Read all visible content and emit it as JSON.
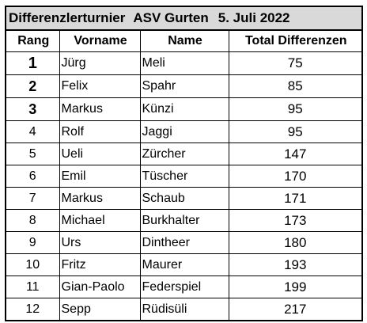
{
  "title": {
    "event": "Differenzlerturnier",
    "club": "ASV Gurten",
    "date": "5. Juli 2022"
  },
  "columns": {
    "rank": "Rang",
    "first_name": "Vorname",
    "last_name": "Name",
    "total": "Total Differenzen"
  },
  "rows": [
    {
      "rank": "1",
      "first_name": "Jürg",
      "last_name": "Meli",
      "total": "75"
    },
    {
      "rank": "2",
      "first_name": "Felix",
      "last_name": "Spahr",
      "total": "85"
    },
    {
      "rank": "3",
      "first_name": "Markus",
      "last_name": "Künzi",
      "total": "95"
    },
    {
      "rank": "4",
      "first_name": "Rolf",
      "last_name": "Jaggi",
      "total": "95"
    },
    {
      "rank": "5",
      "first_name": "Ueli",
      "last_name": "Zürcher",
      "total": "147"
    },
    {
      "rank": "6",
      "first_name": "Emil",
      "last_name": "Tüscher",
      "total": "170"
    },
    {
      "rank": "7",
      "first_name": "Markus",
      "last_name": "Schaub",
      "total": "171"
    },
    {
      "rank": "8",
      "first_name": "Michael",
      "last_name": "Burkhalter",
      "total": "173"
    },
    {
      "rank": "9",
      "first_name": "Urs",
      "last_name": "Dintheer",
      "total": "180"
    },
    {
      "rank": "10",
      "first_name": "Fritz",
      "last_name": "Maurer",
      "total": "193"
    },
    {
      "rank": "11",
      "first_name": "Gian-Paolo",
      "last_name": "Federspiel",
      "total": "199"
    },
    {
      "rank": "12",
      "first_name": "Sepp",
      "last_name": "Rüdisüli",
      "total": "217"
    }
  ],
  "colors": {
    "title_background": "#d9d9d9",
    "border": "#000000",
    "text": "#000000"
  }
}
